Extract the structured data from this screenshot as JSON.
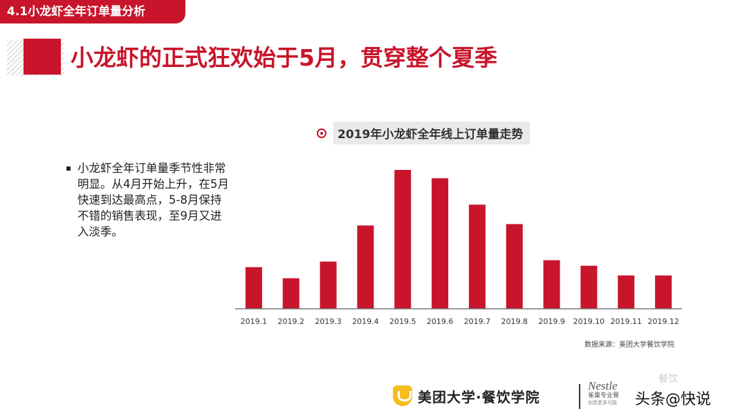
{
  "section_tag": "4.1小龙虾全年订单量分析",
  "headline": "小龙虾的正式狂欢始于5月，贯穿整个夏季",
  "bullet_text": "小龙虾全年订单量季节性非常明显。从4月开始上升，在5月快速到达最高点，5-8月保持不错的销售表现，至9月又进入淡季。",
  "chart_data": {
    "type": "bar",
    "title": "2019年小龙虾全年线上订单量走势",
    "categories": [
      "2019.1",
      "2019.2",
      "2019.3",
      "2019.4",
      "2019.5",
      "2019.6",
      "2019.7",
      "2019.8",
      "2019.9",
      "2019.10",
      "2019.11",
      "2019.12"
    ],
    "values": [
      30,
      22,
      34,
      60,
      100,
      94,
      75,
      61,
      35,
      31,
      24,
      24
    ],
    "ylim": [
      0,
      100
    ],
    "grid": false,
    "bar_color": "#c8152b",
    "axis_color": "#777777"
  },
  "source_note": "数据来源：美团大学餐饮学院",
  "footer": {
    "logo_name": "美团大学·餐饮学院",
    "partner_logo_top": "Nestle",
    "partner_logo_sub": "雀巢专业餐",
    "partner_logo_sub2": "创造更多可能"
  },
  "watermark": "头条@快说",
  "watermark_faint": "餐饮"
}
